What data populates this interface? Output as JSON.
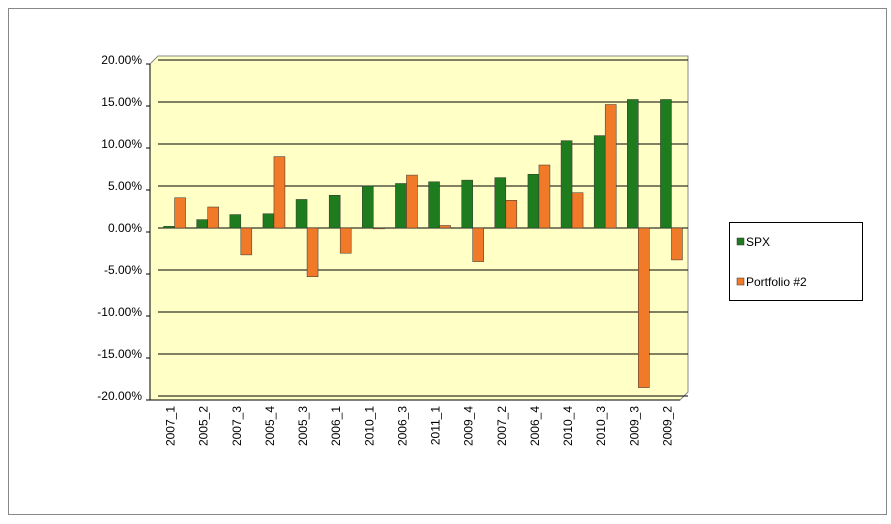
{
  "chart_data": {
    "type": "bar",
    "categories": [
      "2007_1",
      "2005_2",
      "2007_3",
      "2005_4",
      "2005_3",
      "2006_1",
      "2010_1",
      "2006_3",
      "2011_1",
      "2009_4",
      "2007_2",
      "2006_4",
      "2010_4",
      "2010_3",
      "2009_3",
      "2009_2"
    ],
    "series": [
      {
        "name": "SPX",
        "color": "#1e7b1e",
        "values": [
          0.2,
          1.0,
          1.6,
          1.7,
          3.4,
          3.9,
          5.0,
          5.3,
          5.5,
          5.7,
          6.0,
          6.4,
          10.4,
          11.0,
          15.3,
          15.3
        ]
      },
      {
        "name": "Portfolio #2",
        "color": "#f07a28",
        "values": [
          3.6,
          2.5,
          -3.2,
          8.5,
          -5.8,
          -3.0,
          -0.1,
          6.3,
          0.3,
          -4.0,
          3.3,
          7.5,
          4.2,
          14.7,
          -19.0,
          -3.8
        ]
      }
    ],
    "ylim": [
      -20,
      20
    ],
    "yticks": [
      {
        "value": -20,
        "label": "-20.00%"
      },
      {
        "value": -15,
        "label": "-15.00%"
      },
      {
        "value": -10,
        "label": "-10.00%"
      },
      {
        "value": -5,
        "label": "-5.00%"
      },
      {
        "value": 0,
        "label": "0.00%"
      },
      {
        "value": 5,
        "label": "5.00%"
      },
      {
        "value": 10,
        "label": "10.00%"
      },
      {
        "value": 15,
        "label": "15.00%"
      },
      {
        "value": 20,
        "label": "20.00%"
      }
    ],
    "grid": true,
    "legend": "right"
  }
}
